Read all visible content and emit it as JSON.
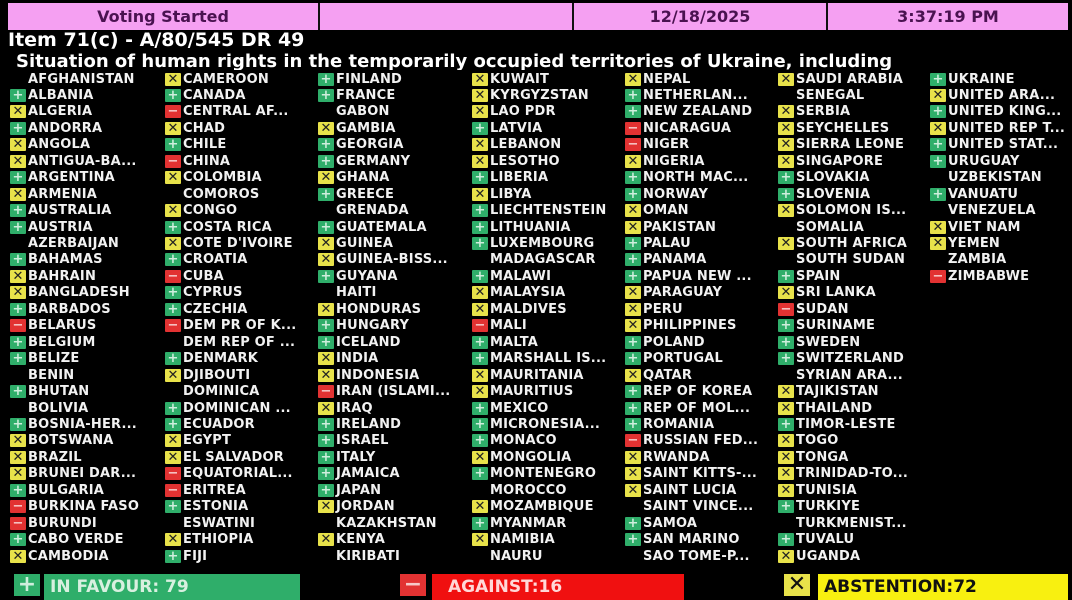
{
  "header": {
    "status": "Voting Started",
    "blank": "",
    "date": "12/18/2025",
    "time": "3:37:19 PM"
  },
  "item": {
    "title": "Item 71(c) - A/80/545 DR 49",
    "subtitle": "Situation of human rights in the temporarily occupied territories of Ukraine, including"
  },
  "colors": {
    "header_bg": "#f5a0f2",
    "in_favour": "#2fae6a",
    "against": "#e23232",
    "abstention": "#e8e24a",
    "background": "#000000"
  },
  "vote_legend": {
    "Y": "in-favour (plus icon)",
    "N": "against (minus icon)",
    "A": "abstention (x icon)",
    "": "not voted"
  },
  "columns": [
    [
      [
        "AFGHANISTAN",
        ""
      ],
      [
        "ALBANIA",
        "Y"
      ],
      [
        "ALGERIA",
        "A"
      ],
      [
        "ANDORRA",
        "Y"
      ],
      [
        "ANGOLA",
        "A"
      ],
      [
        "ANTIGUA-BA...",
        "A"
      ],
      [
        "ARGENTINA",
        "Y"
      ],
      [
        "ARMENIA",
        "A"
      ],
      [
        "AUSTRALIA",
        "Y"
      ],
      [
        "AUSTRIA",
        "Y"
      ],
      [
        "AZERBAIJAN",
        ""
      ],
      [
        "BAHAMAS",
        "Y"
      ],
      [
        "BAHRAIN",
        "A"
      ],
      [
        "BANGLADESH",
        "A"
      ],
      [
        "BARBADOS",
        "Y"
      ],
      [
        "BELARUS",
        "N"
      ],
      [
        "BELGIUM",
        "Y"
      ],
      [
        "BELIZE",
        "Y"
      ],
      [
        "BENIN",
        ""
      ],
      [
        "BHUTAN",
        "Y"
      ],
      [
        "BOLIVIA",
        ""
      ],
      [
        "BOSNIA-HER...",
        "Y"
      ],
      [
        "BOTSWANA",
        "A"
      ],
      [
        "BRAZIL",
        "A"
      ],
      [
        "BRUNEI DAR...",
        "A"
      ],
      [
        "BULGARIA",
        "Y"
      ],
      [
        "BURKINA FASO",
        "N"
      ],
      [
        "BURUNDI",
        "N"
      ],
      [
        "CABO VERDE",
        "Y"
      ],
      [
        "CAMBODIA",
        "A"
      ]
    ],
    [
      [
        "CAMEROON",
        "A"
      ],
      [
        "CANADA",
        "Y"
      ],
      [
        "CENTRAL AF...",
        "N"
      ],
      [
        "CHAD",
        "A"
      ],
      [
        "CHILE",
        "Y"
      ],
      [
        "CHINA",
        "N"
      ],
      [
        "COLOMBIA",
        "A"
      ],
      [
        "COMOROS",
        ""
      ],
      [
        "CONGO",
        "A"
      ],
      [
        "COSTA RICA",
        "Y"
      ],
      [
        "COTE D'IVOIRE",
        "A"
      ],
      [
        "CROATIA",
        "Y"
      ],
      [
        "CUBA",
        "N"
      ],
      [
        "CYPRUS",
        "Y"
      ],
      [
        "CZECHIA",
        "Y"
      ],
      [
        "DEM PR OF K...",
        "N"
      ],
      [
        "DEM REP OF ...",
        ""
      ],
      [
        "DENMARK",
        "Y"
      ],
      [
        "DJIBOUTI",
        "A"
      ],
      [
        "DOMINICA",
        ""
      ],
      [
        "DOMINICAN ...",
        "Y"
      ],
      [
        "ECUADOR",
        "Y"
      ],
      [
        "EGYPT",
        "A"
      ],
      [
        "EL SALVADOR",
        "A"
      ],
      [
        "EQUATORIAL...",
        "N"
      ],
      [
        "ERITREA",
        "N"
      ],
      [
        "ESTONIA",
        "Y"
      ],
      [
        "ESWATINI",
        ""
      ],
      [
        "ETHIOPIA",
        "A"
      ],
      [
        "FIJI",
        "Y"
      ]
    ],
    [
      [
        "FINLAND",
        "Y"
      ],
      [
        "FRANCE",
        "Y"
      ],
      [
        "GABON",
        ""
      ],
      [
        "GAMBIA",
        "A"
      ],
      [
        "GEORGIA",
        "Y"
      ],
      [
        "GERMANY",
        "Y"
      ],
      [
        "GHANA",
        "A"
      ],
      [
        "GREECE",
        "Y"
      ],
      [
        "GRENADA",
        ""
      ],
      [
        "GUATEMALA",
        "Y"
      ],
      [
        "GUINEA",
        "A"
      ],
      [
        "GUINEA-BISS...",
        "A"
      ],
      [
        "GUYANA",
        "Y"
      ],
      [
        "HAITI",
        ""
      ],
      [
        "HONDURAS",
        "A"
      ],
      [
        "HUNGARY",
        "Y"
      ],
      [
        "ICELAND",
        "Y"
      ],
      [
        "INDIA",
        "A"
      ],
      [
        "INDONESIA",
        "A"
      ],
      [
        "IRAN (ISLAMI...",
        "N"
      ],
      [
        "IRAQ",
        "A"
      ],
      [
        "IRELAND",
        "Y"
      ],
      [
        "ISRAEL",
        "Y"
      ],
      [
        "ITALY",
        "Y"
      ],
      [
        "JAMAICA",
        "Y"
      ],
      [
        "JAPAN",
        "Y"
      ],
      [
        "JORDAN",
        "A"
      ],
      [
        "KAZAKHSTAN",
        ""
      ],
      [
        "KENYA",
        "A"
      ],
      [
        "KIRIBATI",
        ""
      ]
    ],
    [
      [
        "KUWAIT",
        "A"
      ],
      [
        "KYRGYZSTAN",
        "A"
      ],
      [
        "LAO PDR",
        "A"
      ],
      [
        "LATVIA",
        "Y"
      ],
      [
        "LEBANON",
        "A"
      ],
      [
        "LESOTHO",
        "A"
      ],
      [
        "LIBERIA",
        "Y"
      ],
      [
        "LIBYA",
        "A"
      ],
      [
        "LIECHTENSTEIN",
        "Y"
      ],
      [
        "LITHUANIA",
        "Y"
      ],
      [
        "LUXEMBOURG",
        "Y"
      ],
      [
        "MADAGASCAR",
        ""
      ],
      [
        "MALAWI",
        "Y"
      ],
      [
        "MALAYSIA",
        "A"
      ],
      [
        "MALDIVES",
        "A"
      ],
      [
        "MALI",
        "N"
      ],
      [
        "MALTA",
        "Y"
      ],
      [
        "MARSHALL IS...",
        "Y"
      ],
      [
        "MAURITANIA",
        "A"
      ],
      [
        "MAURITIUS",
        "A"
      ],
      [
        "MEXICO",
        "Y"
      ],
      [
        "MICRONESIA...",
        "Y"
      ],
      [
        "MONACO",
        "Y"
      ],
      [
        "MONGOLIA",
        "A"
      ],
      [
        "MONTENEGRO",
        "Y"
      ],
      [
        "MOROCCO",
        ""
      ],
      [
        "MOZAMBIQUE",
        "A"
      ],
      [
        "MYANMAR",
        "Y"
      ],
      [
        "NAMIBIA",
        "A"
      ],
      [
        "NAURU",
        ""
      ]
    ],
    [
      [
        "NEPAL",
        "A"
      ],
      [
        "NETHERLAN...",
        "Y"
      ],
      [
        "NEW ZEALAND",
        "Y"
      ],
      [
        "NICARAGUA",
        "N"
      ],
      [
        "NIGER",
        "N"
      ],
      [
        "NIGERIA",
        "A"
      ],
      [
        "NORTH MAC...",
        "Y"
      ],
      [
        "NORWAY",
        "Y"
      ],
      [
        "OMAN",
        "A"
      ],
      [
        "PAKISTAN",
        "A"
      ],
      [
        "PALAU",
        "Y"
      ],
      [
        "PANAMA",
        "Y"
      ],
      [
        "PAPUA NEW ...",
        "Y"
      ],
      [
        "PARAGUAY",
        "A"
      ],
      [
        "PERU",
        "A"
      ],
      [
        "PHILIPPINES",
        "A"
      ],
      [
        "POLAND",
        "Y"
      ],
      [
        "PORTUGAL",
        "Y"
      ],
      [
        "QATAR",
        "A"
      ],
      [
        "REP OF KOREA",
        "Y"
      ],
      [
        "REP OF MOL...",
        "Y"
      ],
      [
        "ROMANIA",
        "Y"
      ],
      [
        "RUSSIAN FED...",
        "N"
      ],
      [
        "RWANDA",
        "A"
      ],
      [
        "SAINT KITTS-...",
        "A"
      ],
      [
        "SAINT LUCIA",
        "A"
      ],
      [
        "SAINT VINCE...",
        ""
      ],
      [
        "SAMOA",
        "Y"
      ],
      [
        "SAN MARINO",
        "Y"
      ],
      [
        "SAO TOME-P...",
        ""
      ]
    ],
    [
      [
        "SAUDI ARABIA",
        "A"
      ],
      [
        "SENEGAL",
        ""
      ],
      [
        "SERBIA",
        "A"
      ],
      [
        "SEYCHELLES",
        "A"
      ],
      [
        "SIERRA LEONE",
        "A"
      ],
      [
        "SINGAPORE",
        "A"
      ],
      [
        "SLOVAKIA",
        "Y"
      ],
      [
        "SLOVENIA",
        "Y"
      ],
      [
        "SOLOMON IS...",
        "A"
      ],
      [
        "SOMALIA",
        ""
      ],
      [
        "SOUTH AFRICA",
        "A"
      ],
      [
        "SOUTH SUDAN",
        ""
      ],
      [
        "SPAIN",
        "Y"
      ],
      [
        "SRI LANKA",
        "A"
      ],
      [
        "SUDAN",
        "N"
      ],
      [
        "SURINAME",
        "Y"
      ],
      [
        "SWEDEN",
        "Y"
      ],
      [
        "SWITZERLAND",
        "Y"
      ],
      [
        "SYRIAN ARA...",
        ""
      ],
      [
        "TAJIKISTAN",
        "A"
      ],
      [
        "THAILAND",
        "A"
      ],
      [
        "TIMOR-LESTE",
        "Y"
      ],
      [
        "TOGO",
        "A"
      ],
      [
        "TONGA",
        "A"
      ],
      [
        "TRINIDAD-TO...",
        "A"
      ],
      [
        "TUNISIA",
        "A"
      ],
      [
        "TURKIYE",
        "Y"
      ],
      [
        "TURKMENIST...",
        ""
      ],
      [
        "TUVALU",
        "Y"
      ],
      [
        "UGANDA",
        "A"
      ]
    ],
    [
      [
        "UKRAINE",
        "Y"
      ],
      [
        "UNITED ARA...",
        "A"
      ],
      [
        "UNITED KING...",
        "Y"
      ],
      [
        "UNITED REP T...",
        "A"
      ],
      [
        "UNITED STAT...",
        "Y"
      ],
      [
        "URUGUAY",
        "Y"
      ],
      [
        "UZBEKISTAN",
        ""
      ],
      [
        "VANUATU",
        "Y"
      ],
      [
        "VENEZUELA",
        ""
      ],
      [
        "VIET NAM",
        "A"
      ],
      [
        "YEMEN",
        "A"
      ],
      [
        "ZAMBIA",
        ""
      ],
      [
        "ZIMBABWE",
        "N"
      ]
    ]
  ],
  "totals": {
    "in_favour": "IN FAVOUR: 79",
    "against": "AGAINST:16",
    "abstention": "ABSTENTION:72"
  },
  "icons": {
    "Y": "+",
    "N": "−",
    "A": "✕"
  }
}
